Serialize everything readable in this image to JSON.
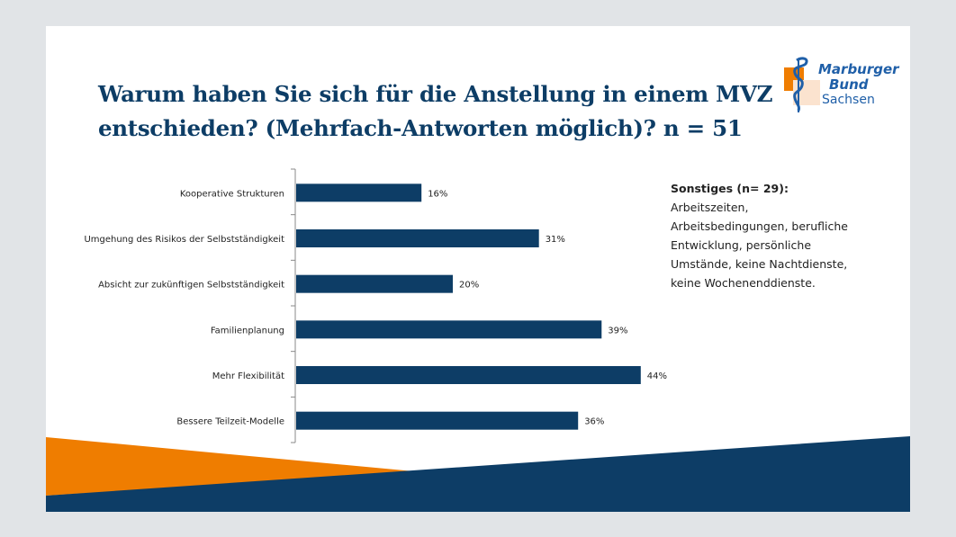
{
  "slide": {
    "title": "Warum haben Sie sich für die Anstellung in einem MVZ entschieden? (Mehrfach-Antworten möglich)? n = 51",
    "logo": {
      "line1": "Marburger",
      "line2": "Bund",
      "line3": "Sachsen",
      "icon": "aesculapian-staff-icon"
    },
    "note": {
      "heading": "Sonstiges (n= 29):",
      "body": "Arbeitszeiten, Arbeitsbedingungen, berufliche Entwicklung, persönliche Umstände, keine Nachtdienste, keine Wochenenddienste."
    },
    "colors": {
      "bar": "#0d3d66",
      "title": "#0d3d66",
      "accent_orange": "#ef7d00",
      "accent_navy": "#0d3d66"
    }
  },
  "chart_data": {
    "type": "bar",
    "orientation": "horizontal",
    "title": "Warum haben Sie sich für die Anstellung in einem MVZ entschieden? (Mehrfach-Antworten möglich)? n = 51",
    "xlabel": "",
    "ylabel": "",
    "categories": [
      "Kooperative Strukturen",
      "Umgehung des Risikos der Selbstständigkeit",
      "Absicht zur zukünftigen Selbstständigkeit",
      "Familienplanung",
      "Mehr Flexibilität",
      "Bessere Teilzeit-Modelle"
    ],
    "values": [
      16,
      31,
      20,
      39,
      44,
      36
    ],
    "value_labels": [
      "16%",
      "31%",
      "20%",
      "39%",
      "44%",
      "36%"
    ],
    "unit": "%",
    "xlim": [
      0,
      50
    ],
    "grid": false,
    "legend": "none"
  }
}
